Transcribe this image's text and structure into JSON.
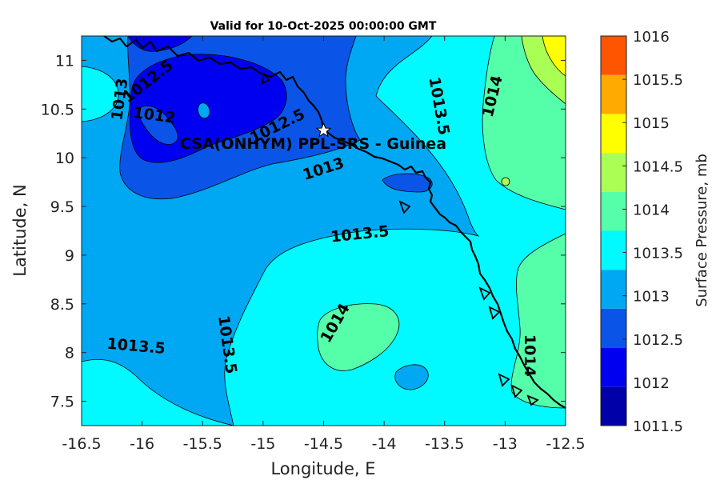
{
  "title": "Valid for 10-Oct-2025 00:00:00 GMT",
  "axes": {
    "xlabel": "Longitude, E",
    "ylabel": "Latitude, N",
    "xlim": [
      -16.5,
      -12.5
    ],
    "ylim": [
      7.25,
      11.25
    ],
    "xticks": [
      "-16.5",
      "-16",
      "-15.5",
      "-15",
      "-14.5",
      "-14",
      "-13.5",
      "-13",
      "-12.5"
    ],
    "yticks": [
      "7.5",
      "8",
      "8.5",
      "9",
      "9.5",
      "10",
      "10.5",
      "11"
    ]
  },
  "station": {
    "label": "CSA(ONHYM) PPL-SRS  - Guinea",
    "lon": -14.5,
    "lat": 10.28
  },
  "contour_labels": [
    {
      "text": "1012.5",
      "lon": -15.95,
      "lat": 10.78,
      "angle": -38
    },
    {
      "text": "1012",
      "lon": -15.9,
      "lat": 10.43,
      "angle": 8
    },
    {
      "text": "1013",
      "lon": -16.18,
      "lat": 10.6,
      "angle": -82
    },
    {
      "text": "1012.5",
      "lon": -14.88,
      "lat": 10.32,
      "angle": -26
    },
    {
      "text": "1013",
      "lon": -14.5,
      "lat": 9.88,
      "angle": -18
    },
    {
      "text": "1013.5",
      "lon": -13.55,
      "lat": 10.53,
      "angle": 80
    },
    {
      "text": "1014",
      "lon": -13.1,
      "lat": 10.63,
      "angle": -76
    },
    {
      "text": "1013.5",
      "lon": -14.2,
      "lat": 9.21,
      "angle": -6
    },
    {
      "text": "1014",
      "lon": -14.4,
      "lat": 8.3,
      "angle": -60
    },
    {
      "text": "1013.5",
      "lon": -15.3,
      "lat": 8.08,
      "angle": 82
    },
    {
      "text": "1013.5",
      "lon": -16.05,
      "lat": 8.06,
      "angle": 5
    },
    {
      "text": "1014",
      "lon": -12.8,
      "lat": 7.97,
      "angle": 90
    }
  ],
  "colorbar": {
    "label": "Surface Pressure, mb",
    "levels": [
      "1011.5",
      "1012",
      "1012.5",
      "1013",
      "1013.5",
      "1014",
      "1014.5",
      "1015",
      "1015.5",
      "1016"
    ],
    "colors": [
      "#0000A8",
      "#0000F0",
      "#0A55E8",
      "#00A8F4",
      "#00FAFF",
      "#55FFAA",
      "#AAFF55",
      "#FFFF00",
      "#FFAA00",
      "#FF5500"
    ]
  }
}
